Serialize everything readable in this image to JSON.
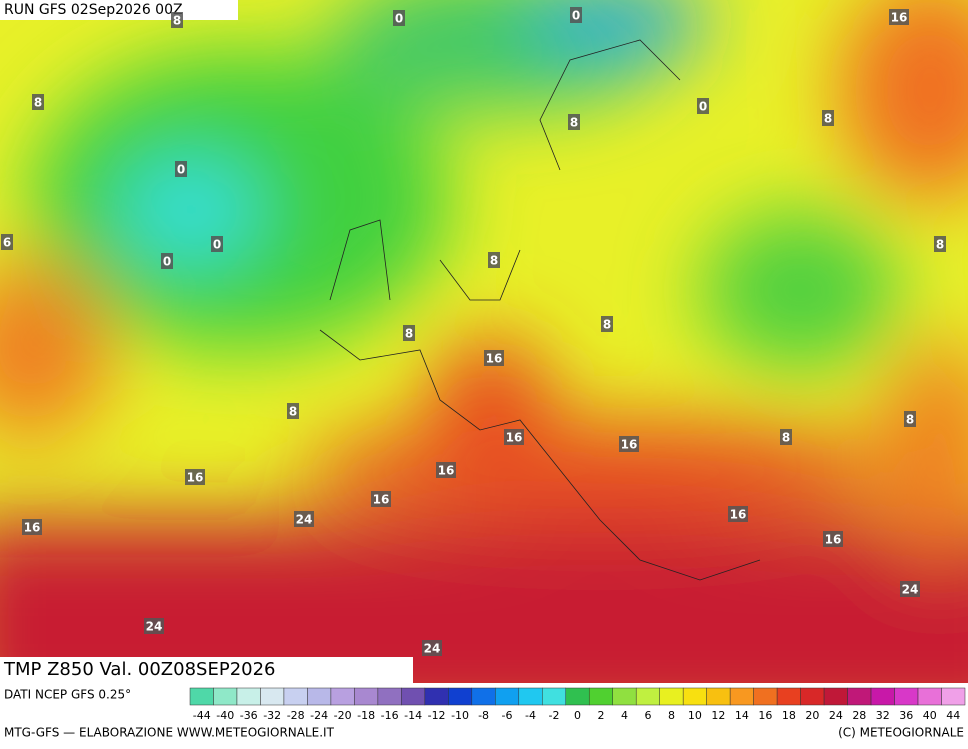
{
  "header": {
    "run": "RUN GFS 02Sep2026 00Z"
  },
  "map": {
    "contour_labels": [
      8,
      0,
      0,
      16,
      8,
      0,
      8,
      8,
      0,
      6,
      0,
      8,
      0,
      8,
      8,
      8,
      16,
      8,
      8,
      16,
      16,
      8,
      16,
      16,
      16,
      24,
      16,
      16,
      16,
      24,
      24,
      24
    ]
  },
  "footer": {
    "title": "TMP Z850 Val. 00Z08SEP2026",
    "source": "DATI NCEP GFS 0.25°",
    "credit_left": "MTG-GFS — ELABORAZIONE WWW.METEOGIORNALE.IT",
    "credit_right": "(C) METEOGIORNALE"
  },
  "scale": {
    "labels": [
      -44,
      -40,
      -36,
      -32,
      -28,
      -24,
      -20,
      -18,
      -16,
      -14,
      -12,
      -10,
      -8,
      -6,
      -4,
      -2,
      0,
      2,
      4,
      6,
      8,
      10,
      12,
      14,
      16,
      18,
      20,
      24,
      28,
      32,
      36,
      40,
      44
    ],
    "colors": [
      "#4fd8a8",
      "#8fe8c8",
      "#c8f0e8",
      "#d8e8f0",
      "#c8d0f0",
      "#b8b8e8",
      "#b8a0e0",
      "#a888d0",
      "#9070c0",
      "#7050b0",
      "#3030b0",
      "#1040d0",
      "#1070e8",
      "#10a0f0",
      "#20c8f0",
      "#40e0e0",
      "#30c050",
      "#50d030",
      "#90e040",
      "#c0f040",
      "#e8f020",
      "#f8e010",
      "#f8c010",
      "#f89820",
      "#f07020",
      "#e84020",
      "#d82828",
      "#c01838",
      "#c01878",
      "#c818a8",
      "#d838c8",
      "#e870d8",
      "#f0a0e8"
    ]
  }
}
